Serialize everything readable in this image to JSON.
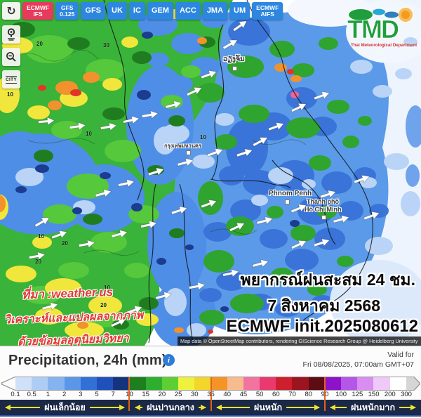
{
  "toolbar": {
    "refresh_icon": "↻",
    "models": [
      {
        "line1": "ECMWF",
        "line2": "IFS"
      },
      {
        "line1": "GFS",
        "line2": "0.125"
      },
      {
        "line1": "GFS"
      },
      {
        "line1": "UK"
      },
      {
        "line1": "IC"
      },
      {
        "line1": "GEM"
      },
      {
        "line1": "ACC"
      },
      {
        "line1": "JMA"
      },
      {
        "line1": "UM"
      },
      {
        "line1": "ECMWF",
        "line2": "AIFS"
      }
    ]
  },
  "side_controls": {
    "city_label": "CITY"
  },
  "logo": {
    "title": "TMD",
    "subtitle": "Thai Meteorological Department"
  },
  "map": {
    "cities": [
      {
        "name": "ວຽງຈັນ"
      },
      {
        "name": "กรุงเทพมหานคร"
      },
      {
        "name": "Phnom Penh"
      },
      {
        "line1": "Thành phố",
        "line2": "Hồ Chí Minh"
      }
    ],
    "contours": [
      "20",
      "30",
      "10",
      "10",
      "10",
      "20",
      "20",
      "10",
      "20",
      "10"
    ],
    "overlay": {
      "line1": "พยากรณ์ฝนสะสม 24 ชม.",
      "line2": "7 สิงหาคม 2568",
      "line3": "ECMWF init.2025080612"
    },
    "watermark": {
      "line1": "ที่มา :weather.us",
      "line2": "วิเคราะห์และแปลผลจากภาพ",
      "line3": "ด้วยข้อมูลอุตุนิยมวิทยา"
    },
    "attribution": "Map data © OpenStreetMap contributors, rendering GIScience Research Group @ Heidelberg University"
  },
  "legend": {
    "title": "Precipitation, 24h (mm)",
    "info_icon": "i",
    "valid_for_line1": "Valid for",
    "valid_for_line2": "Fri 08/08/2025, 07:00am GMT+07",
    "ticks": [
      "0.1",
      "0.5",
      "1",
      "2",
      "3",
      "5",
      "7",
      "10",
      "15",
      "20",
      "25",
      "30",
      "35",
      "40",
      "45",
      "50",
      "60",
      "70",
      "80",
      "90",
      "100",
      "125",
      "150",
      "200",
      "300"
    ],
    "segment_colors": [
      "#cfe0f8",
      "#aecdf4",
      "#85b3ef",
      "#5a97e8",
      "#3170d6",
      "#2050bc",
      "#16337e",
      "#1d7f1d",
      "#2eae2e",
      "#5ecf33",
      "#eef23f",
      "#f2d629",
      "#f59327",
      "#f8bb90",
      "#f272a0",
      "#e83a6e",
      "#ce1f2e",
      "#9c141f",
      "#5c0c12",
      "#8d12c9",
      "#b556e8",
      "#d98df0",
      "#efc9f8",
      "#ffffff"
    ],
    "overflow_color": "#d6d6d6",
    "divider_ticks": [
      "10",
      "35",
      "90"
    ],
    "divider_color": "#e2601c",
    "categories": [
      {
        "label": "ฝนเล็กน้อย"
      },
      {
        "label": "ฝนปานกลาง"
      },
      {
        "label": "ฝนหนัก"
      },
      {
        "label": "ฝนหนักมาก"
      }
    ]
  }
}
